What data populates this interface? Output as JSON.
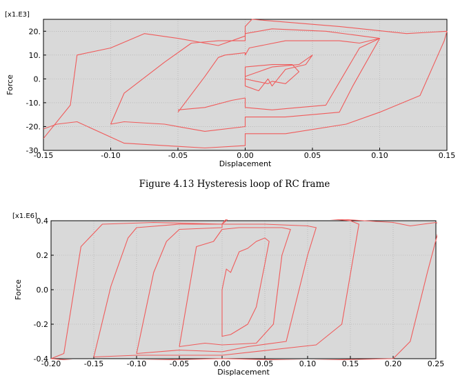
{
  "chart_data": [
    {
      "type": "line",
      "multiplier": "[x1.E3]",
      "xlabel": "Displacement",
      "ylabel": "Force",
      "xlim": [
        -0.15,
        0.15
      ],
      "ylim": [
        -30,
        25
      ],
      "xticks": [
        -0.15,
        -0.1,
        -0.05,
        0.0,
        0.05,
        0.1,
        0.15
      ],
      "xtick_labels": [
        "-0.15",
        "-0.10",
        "-0.05",
        "0.00",
        "0.05",
        "0.10",
        "0.15"
      ],
      "yticks": [
        -30,
        -20,
        -10,
        0,
        10,
        20
      ],
      "ytick_labels": [
        "-30.",
        "-20.",
        "-10.",
        "0.",
        "10.",
        "20."
      ],
      "grid": true,
      "background": "#d9d9d9",
      "line_color": "#f05a5a",
      "series": [
        {
          "values": [
            [
              0.0,
              1
            ],
            [
              0.02,
              5
            ],
            [
              0.04,
              6
            ],
            [
              0.05,
              10
            ],
            [
              0.045,
              6
            ],
            [
              0.03,
              4
            ],
            [
              0.02,
              -3
            ],
            [
              0.017,
              0
            ],
            [
              0.01,
              -5
            ],
            [
              0.0,
              -3
            ],
            [
              0.0,
              2
            ],
            [
              0.0,
              5
            ],
            [
              0.02,
              6
            ],
            [
              0.035,
              6
            ],
            [
              0.04,
              3
            ],
            [
              0.03,
              -2
            ],
            [
              0.02,
              -1
            ],
            [
              0.017,
              -2
            ],
            [
              0.008,
              -1
            ],
            [
              0.0,
              0
            ]
          ]
        },
        {
          "values": [
            [
              -0.05,
              -14
            ],
            [
              -0.03,
              1
            ],
            [
              -0.02,
              9
            ],
            [
              -0.015,
              10
            ],
            [
              0.0,
              11
            ],
            [
              0.0,
              10
            ],
            [
              0.003,
              13
            ],
            [
              0.03,
              16
            ],
            [
              0.07,
              16
            ],
            [
              0.085,
              15
            ],
            [
              0.1,
              17
            ],
            [
              0.085,
              13
            ],
            [
              0.06,
              -11
            ],
            [
              0.04,
              -12
            ],
            [
              0.02,
              -13
            ],
            [
              0.0,
              -12
            ],
            [
              0.0,
              -8
            ],
            [
              -0.01,
              -9
            ],
            [
              -0.03,
              -12
            ],
            [
              -0.05,
              -13
            ]
          ]
        },
        {
          "values": [
            [
              -0.1,
              -19
            ],
            [
              -0.09,
              -6
            ],
            [
              -0.06,
              7
            ],
            [
              -0.04,
              15
            ],
            [
              -0.02,
              16
            ],
            [
              0.0,
              16
            ],
            [
              0.0,
              19
            ],
            [
              0.02,
              21
            ],
            [
              0.06,
              20
            ],
            [
              0.1,
              17
            ],
            [
              0.08,
              -3
            ],
            [
              0.07,
              -14
            ],
            [
              0.03,
              -16
            ],
            [
              0.0,
              -16
            ],
            [
              0.0,
              -20
            ],
            [
              -0.03,
              -22
            ],
            [
              -0.06,
              -19
            ],
            [
              -0.09,
              -18
            ],
            [
              -0.1,
              -19
            ]
          ]
        },
        {
          "values": [
            [
              -0.15,
              -25
            ],
            [
              -0.13,
              -11
            ],
            [
              -0.125,
              10
            ],
            [
              -0.1,
              13
            ],
            [
              -0.075,
              19
            ],
            [
              -0.05,
              17
            ],
            [
              -0.02,
              14
            ],
            [
              0.0,
              18
            ],
            [
              0.0,
              22
            ],
            [
              0.005,
              25
            ],
            [
              0.07,
              22
            ],
            [
              0.12,
              19
            ],
            [
              0.15,
              20
            ],
            [
              0.148,
              16
            ],
            [
              0.13,
              -7
            ],
            [
              0.1,
              -14
            ],
            [
              0.075,
              -19
            ],
            [
              0.03,
              -23
            ],
            [
              0.0,
              -23
            ],
            [
              0.0,
              -28
            ],
            [
              -0.03,
              -29
            ],
            [
              -0.09,
              -27
            ],
            [
              -0.125,
              -18
            ],
            [
              -0.14,
              -19
            ],
            [
              -0.15,
              -21
            ]
          ]
        }
      ]
    },
    {
      "type": "line",
      "multiplier": "[x1.E6]",
      "xlabel": "Displacement",
      "ylabel": "Force",
      "xlim": [
        -0.2,
        0.25
      ],
      "ylim": [
        -0.4,
        0.4
      ],
      "xticks": [
        -0.2,
        -0.15,
        -0.1,
        -0.05,
        0.0,
        0.05,
        0.1,
        0.15,
        0.2,
        0.25
      ],
      "xtick_labels": [
        "-0.20",
        "-0.15",
        "-0.10",
        "-0.05",
        "0.00",
        "0.05",
        "0.10",
        "0.15",
        "0.20",
        "0.25"
      ],
      "yticks": [
        -0.4,
        -0.2,
        0.0,
        0.2,
        0.4
      ],
      "ytick_labels": [
        "-0.4",
        "-0.2",
        "0.0",
        "0.2",
        "0.4"
      ],
      "grid": true,
      "background": "#d9d9d9",
      "line_color": "#f05a5a",
      "series": [
        {
          "values": [
            [
              0.0,
              0.0
            ],
            [
              0.005,
              0.12
            ],
            [
              0.01,
              0.1
            ],
            [
              0.02,
              0.22
            ],
            [
              0.03,
              0.24
            ],
            [
              0.04,
              0.28
            ],
            [
              0.05,
              0.3
            ],
            [
              0.055,
              0.28
            ],
            [
              0.05,
              0.15
            ],
            [
              0.04,
              -0.1
            ],
            [
              0.03,
              -0.2
            ],
            [
              0.01,
              -0.26
            ],
            [
              0.0,
              -0.27
            ],
            [
              0.0,
              0.0
            ]
          ]
        },
        {
          "values": [
            [
              -0.05,
              -0.33
            ],
            [
              -0.03,
              0.25
            ],
            [
              -0.01,
              0.28
            ],
            [
              0.0,
              0.35
            ],
            [
              0.02,
              0.36
            ],
            [
              0.07,
              0.36
            ],
            [
              0.08,
              0.35
            ],
            [
              0.07,
              0.2
            ],
            [
              0.06,
              -0.2
            ],
            [
              0.04,
              -0.31
            ],
            [
              0.0,
              -0.32
            ],
            [
              -0.02,
              -0.31
            ],
            [
              -0.05,
              -0.33
            ]
          ]
        },
        {
          "values": [
            [
              -0.1,
              -0.37
            ],
            [
              -0.08,
              0.1
            ],
            [
              -0.065,
              0.28
            ],
            [
              -0.05,
              0.35
            ],
            [
              0.0,
              0.36
            ],
            [
              0.0,
              0.38
            ],
            [
              0.05,
              0.38
            ],
            [
              0.1,
              0.37
            ],
            [
              0.11,
              0.36
            ],
            [
              0.1,
              0.2
            ],
            [
              0.075,
              -0.3
            ],
            [
              0.03,
              -0.33
            ],
            [
              0.0,
              -0.36
            ],
            [
              -0.05,
              -0.35
            ],
            [
              -0.1,
              -0.37
            ]
          ]
        },
        {
          "values": [
            [
              -0.15,
              -0.39
            ],
            [
              -0.13,
              0.02
            ],
            [
              -0.11,
              0.3
            ],
            [
              -0.1,
              0.36
            ],
            [
              -0.05,
              0.38
            ],
            [
              0.0,
              0.38
            ],
            [
              0.003,
              0.4
            ],
            [
              0.01,
              0.43
            ],
            [
              0.08,
              0.43
            ],
            [
              0.15,
              0.4
            ],
            [
              0.16,
              0.38
            ],
            [
              0.14,
              -0.2
            ],
            [
              0.11,
              -0.32
            ],
            [
              0.0,
              -0.38
            ],
            [
              -0.1,
              -0.38
            ],
            [
              -0.15,
              -0.39
            ]
          ]
        },
        {
          "values": [
            [
              -0.2,
              -0.4
            ],
            [
              -0.185,
              -0.37
            ],
            [
              -0.165,
              0.25
            ],
            [
              -0.14,
              0.38
            ],
            [
              -0.08,
              0.39
            ],
            [
              0.0,
              0.38
            ],
            [
              0.005,
              0.4
            ],
            [
              0.01,
              0.44
            ],
            [
              0.1,
              0.42
            ],
            [
              0.2,
              0.39
            ],
            [
              0.22,
              0.37
            ],
            [
              0.25,
              0.39
            ],
            [
              0.255,
              0.38
            ],
            [
              0.24,
              0.1
            ],
            [
              0.22,
              -0.3
            ],
            [
              0.2,
              -0.4
            ],
            [
              0.1,
              -0.41
            ],
            [
              0.0,
              -0.4
            ],
            [
              -0.1,
              -0.41
            ],
            [
              -0.15,
              -0.42
            ],
            [
              -0.2,
              -0.4
            ]
          ]
        }
      ]
    }
  ],
  "caption": "Figure 4.13 Hysteresis loop of RC frame"
}
